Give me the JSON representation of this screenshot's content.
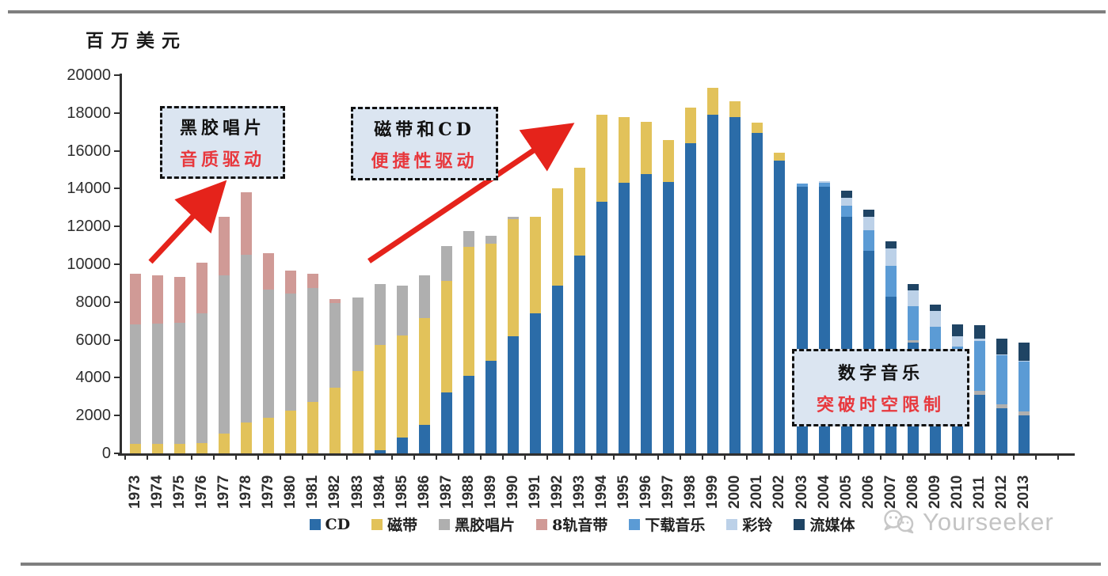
{
  "page": {
    "unit_label": "百万美元",
    "watermark_text": "Yourseeker"
  },
  "y_axis": {
    "tick_values": [
      0,
      2000,
      4000,
      6000,
      8000,
      10000,
      12000,
      14000,
      16000,
      18000,
      20000
    ],
    "max": 20000
  },
  "annotations": [
    {
      "id": "vinyl",
      "line1": "黑胶唱片",
      "line2": "音质驱动"
    },
    {
      "id": "cd",
      "line1": "磁带和CD",
      "line2": "便捷性驱动"
    },
    {
      "id": "digital",
      "line1": "数字音乐",
      "line2": "突破时空限制"
    }
  ],
  "colors": {
    "arrow_red": "#e5231b",
    "annotation_red": "#e8383d",
    "annotation_bg": "#dbe5f1",
    "axis": "#303030",
    "watermark_gray": "#c3c3c3"
  },
  "chart_data": {
    "type": "bar",
    "stacked": true,
    "title": "",
    "xlabel": "",
    "ylabel": "百万美元",
    "ylim": [
      0,
      20000
    ],
    "grid": false,
    "legend_position": "bottom",
    "categories": [
      1973,
      1974,
      1975,
      1976,
      1977,
      1978,
      1979,
      1980,
      1981,
      1982,
      1983,
      1984,
      1985,
      1986,
      1987,
      1988,
      1989,
      1990,
      1991,
      1992,
      1993,
      1994,
      1995,
      1996,
      1997,
      1998,
      1999,
      2000,
      2001,
      2002,
      2003,
      2004,
      2005,
      2006,
      2007,
      2008,
      2009,
      2010,
      2011,
      2012,
      2013
    ],
    "series": [
      {
        "name": "CD",
        "color": "#2b6ca8",
        "values": [
          0,
          0,
          0,
          0,
          0,
          0,
          0,
          0,
          0,
          0,
          0,
          150,
          850,
          1500,
          3200,
          4100,
          4900,
          6200,
          7400,
          8850,
          10450,
          13300,
          14300,
          14750,
          14350,
          16400,
          17900,
          17800,
          16950,
          15500,
          14100,
          14100,
          12500,
          10700,
          8300,
          5850,
          4700,
          3450,
          3100,
          2400,
          2000
        ]
      },
      {
        "name": "磁带",
        "color": "#e2c25a",
        "values": [
          500,
          500,
          500,
          550,
          1050,
          1650,
          1900,
          2250,
          2700,
          3480,
          4350,
          5600,
          5400,
          5650,
          5900,
          6800,
          6200,
          6200,
          5100,
          5150,
          4650,
          4600,
          3500,
          2800,
          2200,
          1900,
          1450,
          800,
          550,
          400,
          0,
          0,
          0,
          0,
          0,
          0,
          0,
          0,
          0,
          0,
          0
        ]
      },
      {
        "name": "黑胶唱片",
        "color": "#afafaf",
        "values": [
          6300,
          6350,
          6400,
          6850,
          8350,
          8850,
          6750,
          6200,
          6050,
          4480,
          3900,
          3200,
          2600,
          2250,
          1850,
          850,
          400,
          100,
          0,
          0,
          0,
          0,
          0,
          0,
          0,
          0,
          0,
          0,
          0,
          0,
          0,
          0,
          0,
          0,
          0,
          150,
          100,
          100,
          200,
          180,
          200
        ]
      },
      {
        "name": "8轨音带",
        "color": "#d09a96",
        "values": [
          2700,
          2550,
          2450,
          2700,
          3100,
          3300,
          1950,
          1200,
          750,
          180,
          0,
          0,
          0,
          0,
          0,
          0,
          0,
          0,
          0,
          0,
          0,
          0,
          0,
          0,
          0,
          0,
          0,
          0,
          0,
          0,
          0,
          0,
          0,
          0,
          0,
          0,
          0,
          0,
          0,
          0,
          0
        ]
      },
      {
        "name": "下载音乐",
        "color": "#5b9bd5",
        "values": [
          0,
          0,
          0,
          0,
          0,
          0,
          0,
          0,
          0,
          0,
          0,
          0,
          0,
          0,
          0,
          0,
          0,
          0,
          0,
          0,
          0,
          0,
          0,
          0,
          0,
          0,
          0,
          0,
          0,
          0,
          150,
          200,
          600,
          1100,
          1600,
          1800,
          1900,
          2100,
          2650,
          2600,
          2650
        ]
      },
      {
        "name": "彩铃",
        "color": "#bcd1e8",
        "values": [
          0,
          0,
          0,
          0,
          0,
          0,
          0,
          0,
          0,
          0,
          0,
          0,
          0,
          0,
          0,
          0,
          0,
          0,
          0,
          0,
          0,
          0,
          0,
          0,
          0,
          0,
          0,
          0,
          0,
          0,
          0,
          100,
          400,
          700,
          950,
          800,
          830,
          550,
          100,
          50,
          50
        ]
      },
      {
        "name": "流媒体",
        "color": "#1f4464",
        "values": [
          0,
          0,
          0,
          0,
          0,
          0,
          0,
          0,
          0,
          0,
          0,
          0,
          0,
          0,
          0,
          0,
          0,
          0,
          0,
          0,
          0,
          0,
          0,
          0,
          0,
          0,
          0,
          0,
          0,
          0,
          0,
          0,
          380,
          400,
          350,
          350,
          350,
          620,
          710,
          840,
          950
        ]
      }
    ]
  }
}
